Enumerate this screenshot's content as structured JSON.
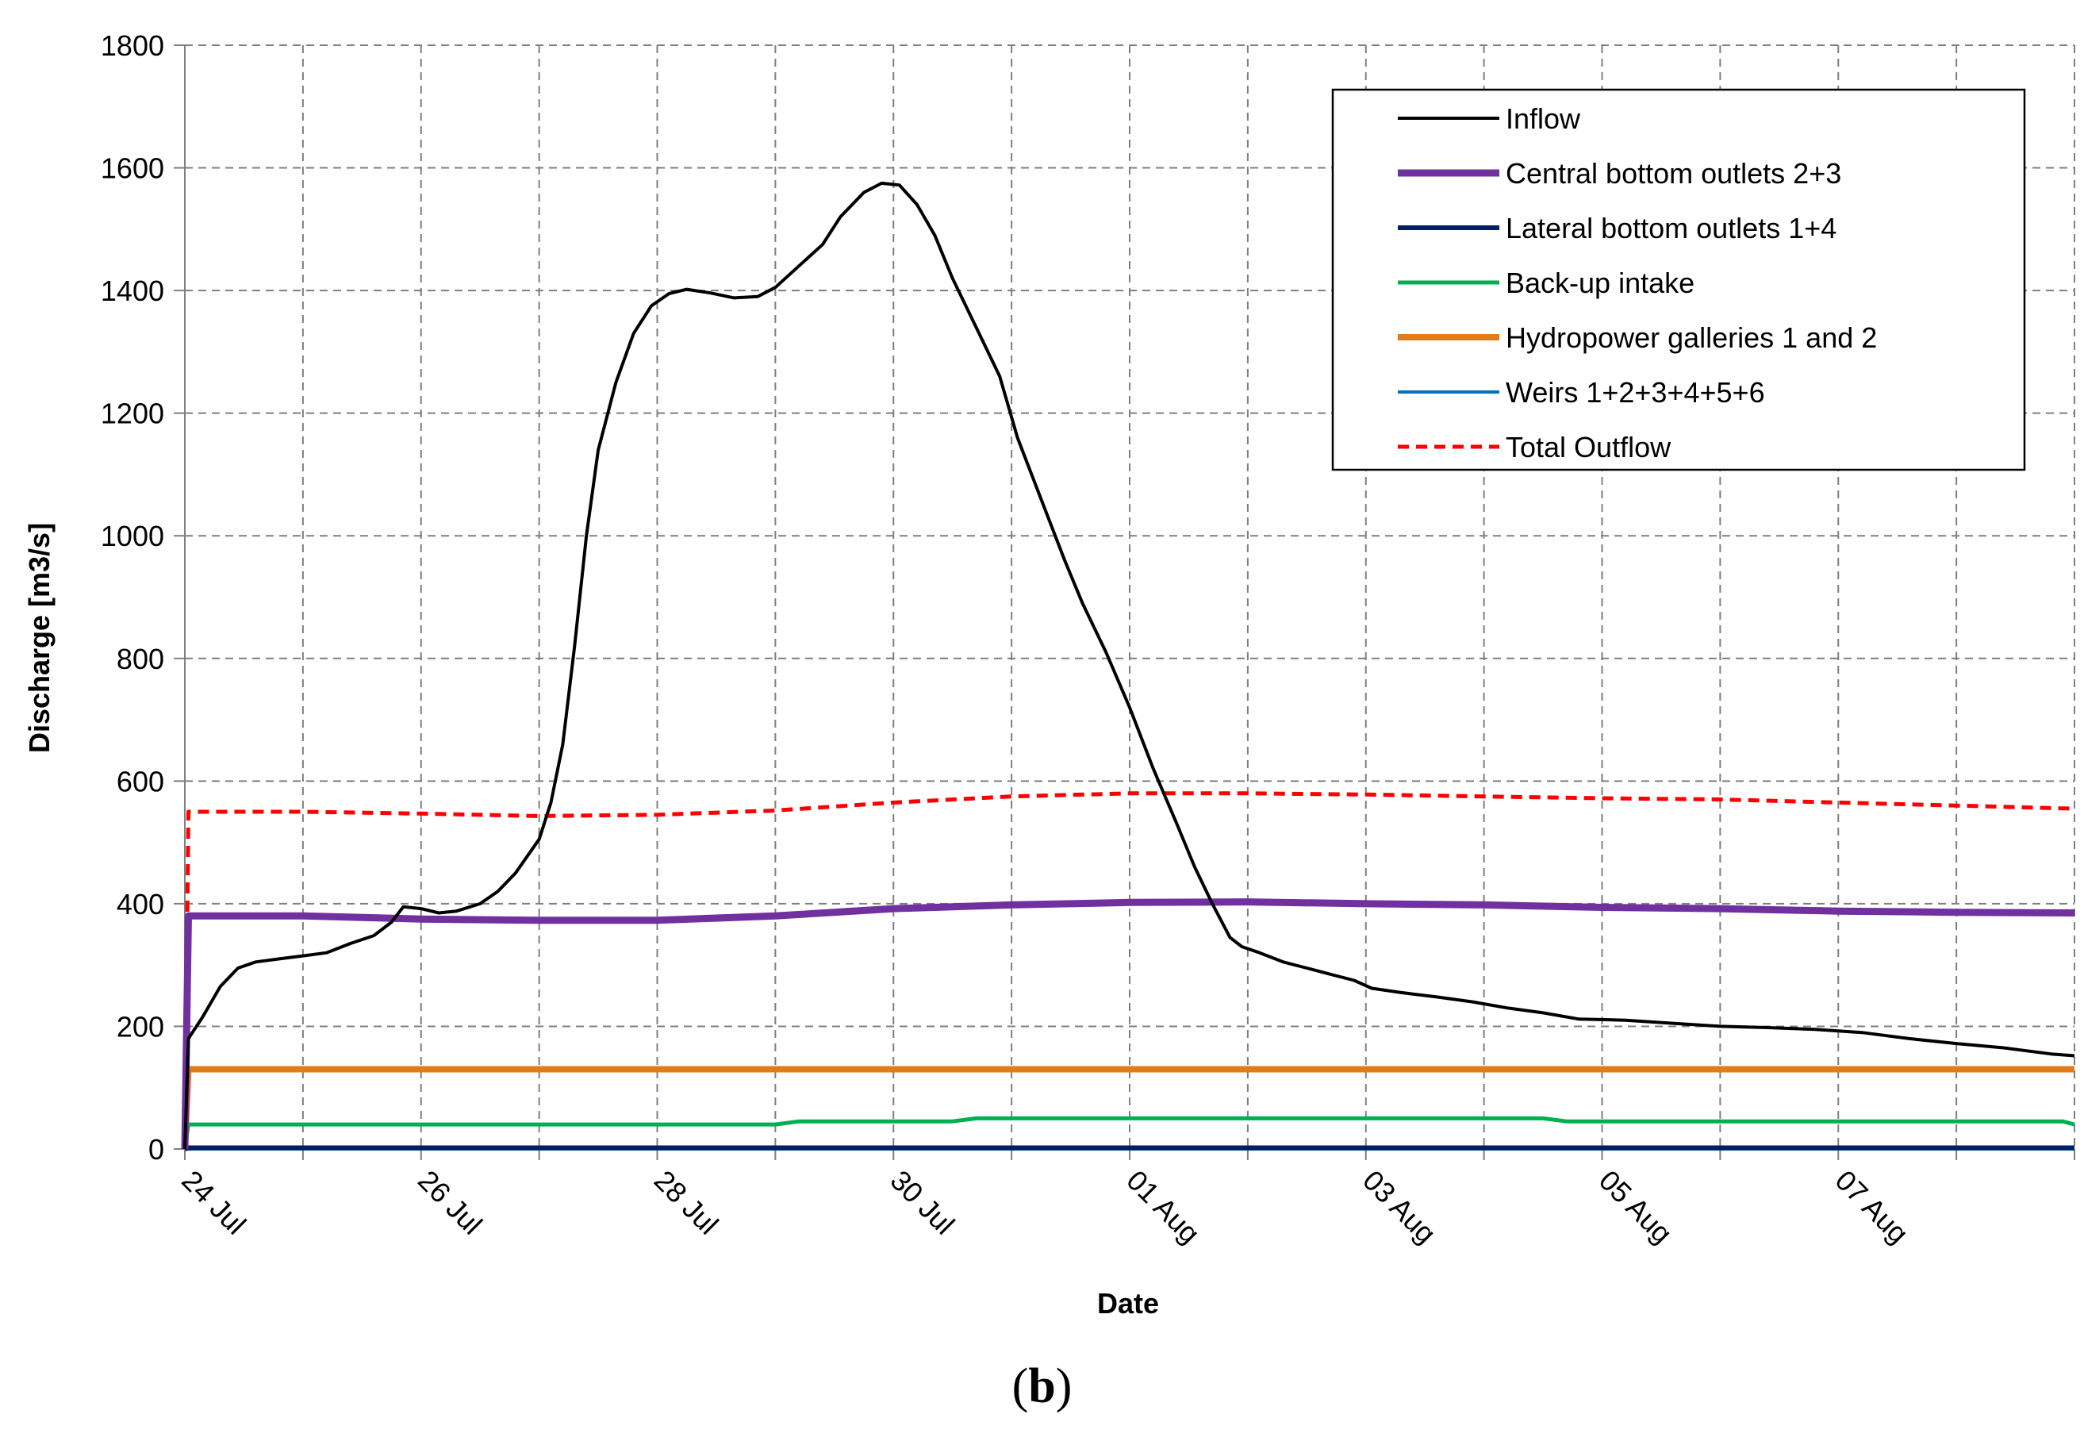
{
  "chart_data": {
    "type": "line",
    "xlabel": "Date",
    "ylabel": "Discharge  [m3/s]",
    "ylim": [
      0,
      1800
    ],
    "yticks": [
      0,
      200,
      400,
      600,
      800,
      1000,
      1200,
      1400,
      1600,
      1800
    ],
    "xlim": [
      0,
      16
    ],
    "x_unit": "days since 24 Jul",
    "xticks": [
      {
        "x": 0,
        "label": "24 Jul"
      },
      {
        "x": 2,
        "label": "26 Jul"
      },
      {
        "x": 4,
        "label": "28 Jul"
      },
      {
        "x": 6,
        "label": "30 Jul"
      },
      {
        "x": 8,
        "label": "01 Aug"
      },
      {
        "x": 10,
        "label": "03 Aug"
      },
      {
        "x": 12,
        "label": "05 Aug"
      },
      {
        "x": 14,
        "label": "07 Aug"
      }
    ],
    "grid": true,
    "legend_position": "top-right",
    "series": [
      {
        "name": "Inflow",
        "color": "#000000",
        "dash": "solid",
        "points": [
          [
            0,
            0
          ],
          [
            0.03,
            180
          ],
          [
            0.15,
            215
          ],
          [
            0.3,
            265
          ],
          [
            0.45,
            295
          ],
          [
            0.6,
            305
          ],
          [
            0.8,
            310
          ],
          [
            1,
            315
          ],
          [
            1.2,
            320
          ],
          [
            1.4,
            335
          ],
          [
            1.6,
            348
          ],
          [
            1.75,
            370
          ],
          [
            1.85,
            395
          ],
          [
            2,
            392
          ],
          [
            2.15,
            385
          ],
          [
            2.3,
            388
          ],
          [
            2.5,
            400
          ],
          [
            2.65,
            420
          ],
          [
            2.8,
            450
          ],
          [
            3,
            505
          ],
          [
            3.1,
            565
          ],
          [
            3.2,
            660
          ],
          [
            3.3,
            820
          ],
          [
            3.4,
            1000
          ],
          [
            3.5,
            1140
          ],
          [
            3.65,
            1250
          ],
          [
            3.8,
            1330
          ],
          [
            3.95,
            1375
          ],
          [
            4.1,
            1395
          ],
          [
            4.25,
            1402
          ],
          [
            4.45,
            1396
          ],
          [
            4.65,
            1388
          ],
          [
            4.85,
            1390
          ],
          [
            5,
            1405
          ],
          [
            5.2,
            1440
          ],
          [
            5.4,
            1475
          ],
          [
            5.55,
            1520
          ],
          [
            5.75,
            1560
          ],
          [
            5.9,
            1575
          ],
          [
            6.05,
            1572
          ],
          [
            6.2,
            1540
          ],
          [
            6.35,
            1490
          ],
          [
            6.5,
            1420
          ],
          [
            6.7,
            1340
          ],
          [
            6.9,
            1260
          ],
          [
            7.05,
            1160
          ],
          [
            7.25,
            1060
          ],
          [
            7.45,
            960
          ],
          [
            7.6,
            890
          ],
          [
            7.8,
            810
          ],
          [
            8,
            720
          ],
          [
            8.2,
            620
          ],
          [
            8.4,
            530
          ],
          [
            8.55,
            460
          ],
          [
            8.7,
            400
          ],
          [
            8.85,
            345
          ],
          [
            8.95,
            330
          ],
          [
            9.1,
            320
          ],
          [
            9.3,
            305
          ],
          [
            9.5,
            295
          ],
          [
            9.7,
            285
          ],
          [
            9.9,
            275
          ],
          [
            10.05,
            262
          ],
          [
            10.3,
            255
          ],
          [
            10.6,
            248
          ],
          [
            10.9,
            240
          ],
          [
            11.2,
            230
          ],
          [
            11.5,
            222
          ],
          [
            11.8,
            212
          ],
          [
            12.2,
            210
          ],
          [
            12.6,
            205
          ],
          [
            13,
            200
          ],
          [
            13.4,
            198
          ],
          [
            13.8,
            195
          ],
          [
            14.2,
            190
          ],
          [
            14.6,
            180
          ],
          [
            15,
            172
          ],
          [
            15.4,
            165
          ],
          [
            15.8,
            155
          ],
          [
            16,
            152
          ]
        ]
      },
      {
        "name": "Central bottom outlets 2+3",
        "color": "#7030A0",
        "dash": "solid",
        "points": [
          [
            0,
            0
          ],
          [
            0.03,
            380
          ],
          [
            1,
            380
          ],
          [
            2,
            375
          ],
          [
            3,
            373
          ],
          [
            4,
            373
          ],
          [
            5,
            380
          ],
          [
            6,
            392
          ],
          [
            7,
            398
          ],
          [
            8,
            402
          ],
          [
            9,
            403
          ],
          [
            10,
            400
          ],
          [
            11,
            398
          ],
          [
            12,
            394
          ],
          [
            13,
            392
          ],
          [
            14,
            388
          ],
          [
            15,
            386
          ],
          [
            16,
            385
          ]
        ]
      },
      {
        "name": "Lateral bottom outlets 1+4",
        "color": "#002060",
        "dash": "solid",
        "points": [
          [
            0,
            0
          ],
          [
            0.03,
            2
          ],
          [
            16,
            2
          ]
        ]
      },
      {
        "name": "Back-up intake",
        "color": "#00B050",
        "dash": "solid",
        "points": [
          [
            0,
            0
          ],
          [
            0.03,
            40
          ],
          [
            5,
            40
          ],
          [
            5.2,
            45
          ],
          [
            6.5,
            45
          ],
          [
            6.7,
            50
          ],
          [
            11.5,
            50
          ],
          [
            11.7,
            45
          ],
          [
            15.9,
            45
          ],
          [
            16,
            40
          ]
        ]
      },
      {
        "name": "Hydropower galleries 1 and 2",
        "color": "#E07C1C",
        "dash": "solid",
        "points": [
          [
            0,
            0
          ],
          [
            0.03,
            130
          ],
          [
            16,
            130
          ]
        ]
      },
      {
        "name": "Weirs 1+2+3+4+5+6",
        "color": "#0070C0",
        "dash": "solid",
        "points": [
          [
            0,
            0
          ],
          [
            0.03,
            0
          ],
          [
            16,
            0
          ]
        ]
      },
      {
        "name": "Total Outflow",
        "color": "#FF0000",
        "dash": "dashed",
        "points": [
          [
            0,
            0
          ],
          [
            0.03,
            550
          ],
          [
            1,
            550
          ],
          [
            2,
            547
          ],
          [
            3,
            543
          ],
          [
            4,
            545
          ],
          [
            5,
            552
          ],
          [
            6,
            565
          ],
          [
            7,
            575
          ],
          [
            8,
            580
          ],
          [
            9,
            580
          ],
          [
            10,
            578
          ],
          [
            11,
            575
          ],
          [
            12,
            572
          ],
          [
            13,
            570
          ],
          [
            14,
            565
          ],
          [
            15,
            560
          ],
          [
            16,
            555
          ]
        ]
      }
    ]
  },
  "caption": "(b)",
  "caption_letter": "b"
}
